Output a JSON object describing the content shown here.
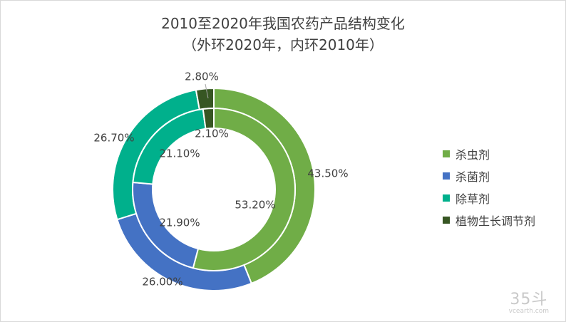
{
  "chart_data": {
    "type": "doughnut",
    "title": "2010至2020年我国农药产品结构变化",
    "subtitle": "（外环2020年，内环2010年）",
    "categories": [
      "杀虫剂",
      "杀菌剂",
      "除草剂",
      "植物生长调节剂"
    ],
    "colors": [
      "#70ad47",
      "#4472c4",
      "#00b08c",
      "#375623"
    ],
    "series": [
      {
        "ring": "outer",
        "values": [
          43.5,
          26.0,
          26.7,
          2.8
        ],
        "labels": [
          "43.50%",
          "26.00%",
          "26.70%",
          "2.80%"
        ]
      },
      {
        "ring": "inner",
        "values": [
          53.2,
          21.9,
          21.1,
          2.1
        ],
        "labels": [
          "53.20%",
          "21.90%",
          "21.10%",
          "2.10%"
        ]
      }
    ],
    "legend": "right"
  },
  "watermark": {
    "brand": "35斗",
    "site": "vcearth.com"
  }
}
